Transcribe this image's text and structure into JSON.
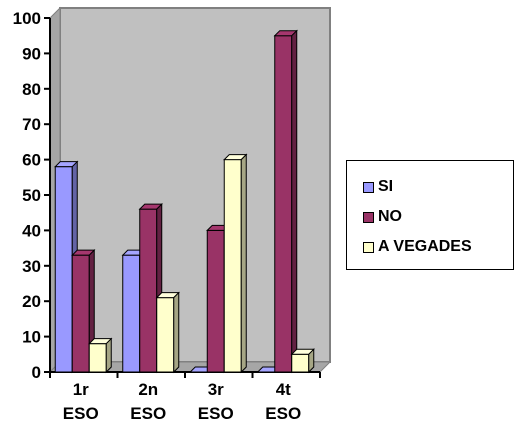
{
  "chart_data": {
    "type": "bar",
    "bar_style": "3d-clustered",
    "categories": [
      [
        "1r",
        "ESO"
      ],
      [
        "2n",
        "ESO"
      ],
      [
        "3r",
        "ESO"
      ],
      [
        "4t",
        "ESO"
      ]
    ],
    "series": [
      {
        "name": "SI",
        "color": "#9999FF",
        "values": [
          58,
          33,
          0,
          0
        ]
      },
      {
        "name": "NO",
        "color": "#993366",
        "values": [
          33,
          46,
          40,
          95
        ]
      },
      {
        "name": "A VEGADES",
        "color": "#FFFFCC",
        "values": [
          8,
          21,
          60,
          5
        ]
      }
    ],
    "ylim": [
      0,
      100
    ],
    "yticks": [
      0,
      10,
      20,
      30,
      40,
      50,
      60,
      70,
      80,
      90,
      100
    ],
    "grid": false,
    "wall_color": "#C0C0C0",
    "legend_position": "right"
  }
}
